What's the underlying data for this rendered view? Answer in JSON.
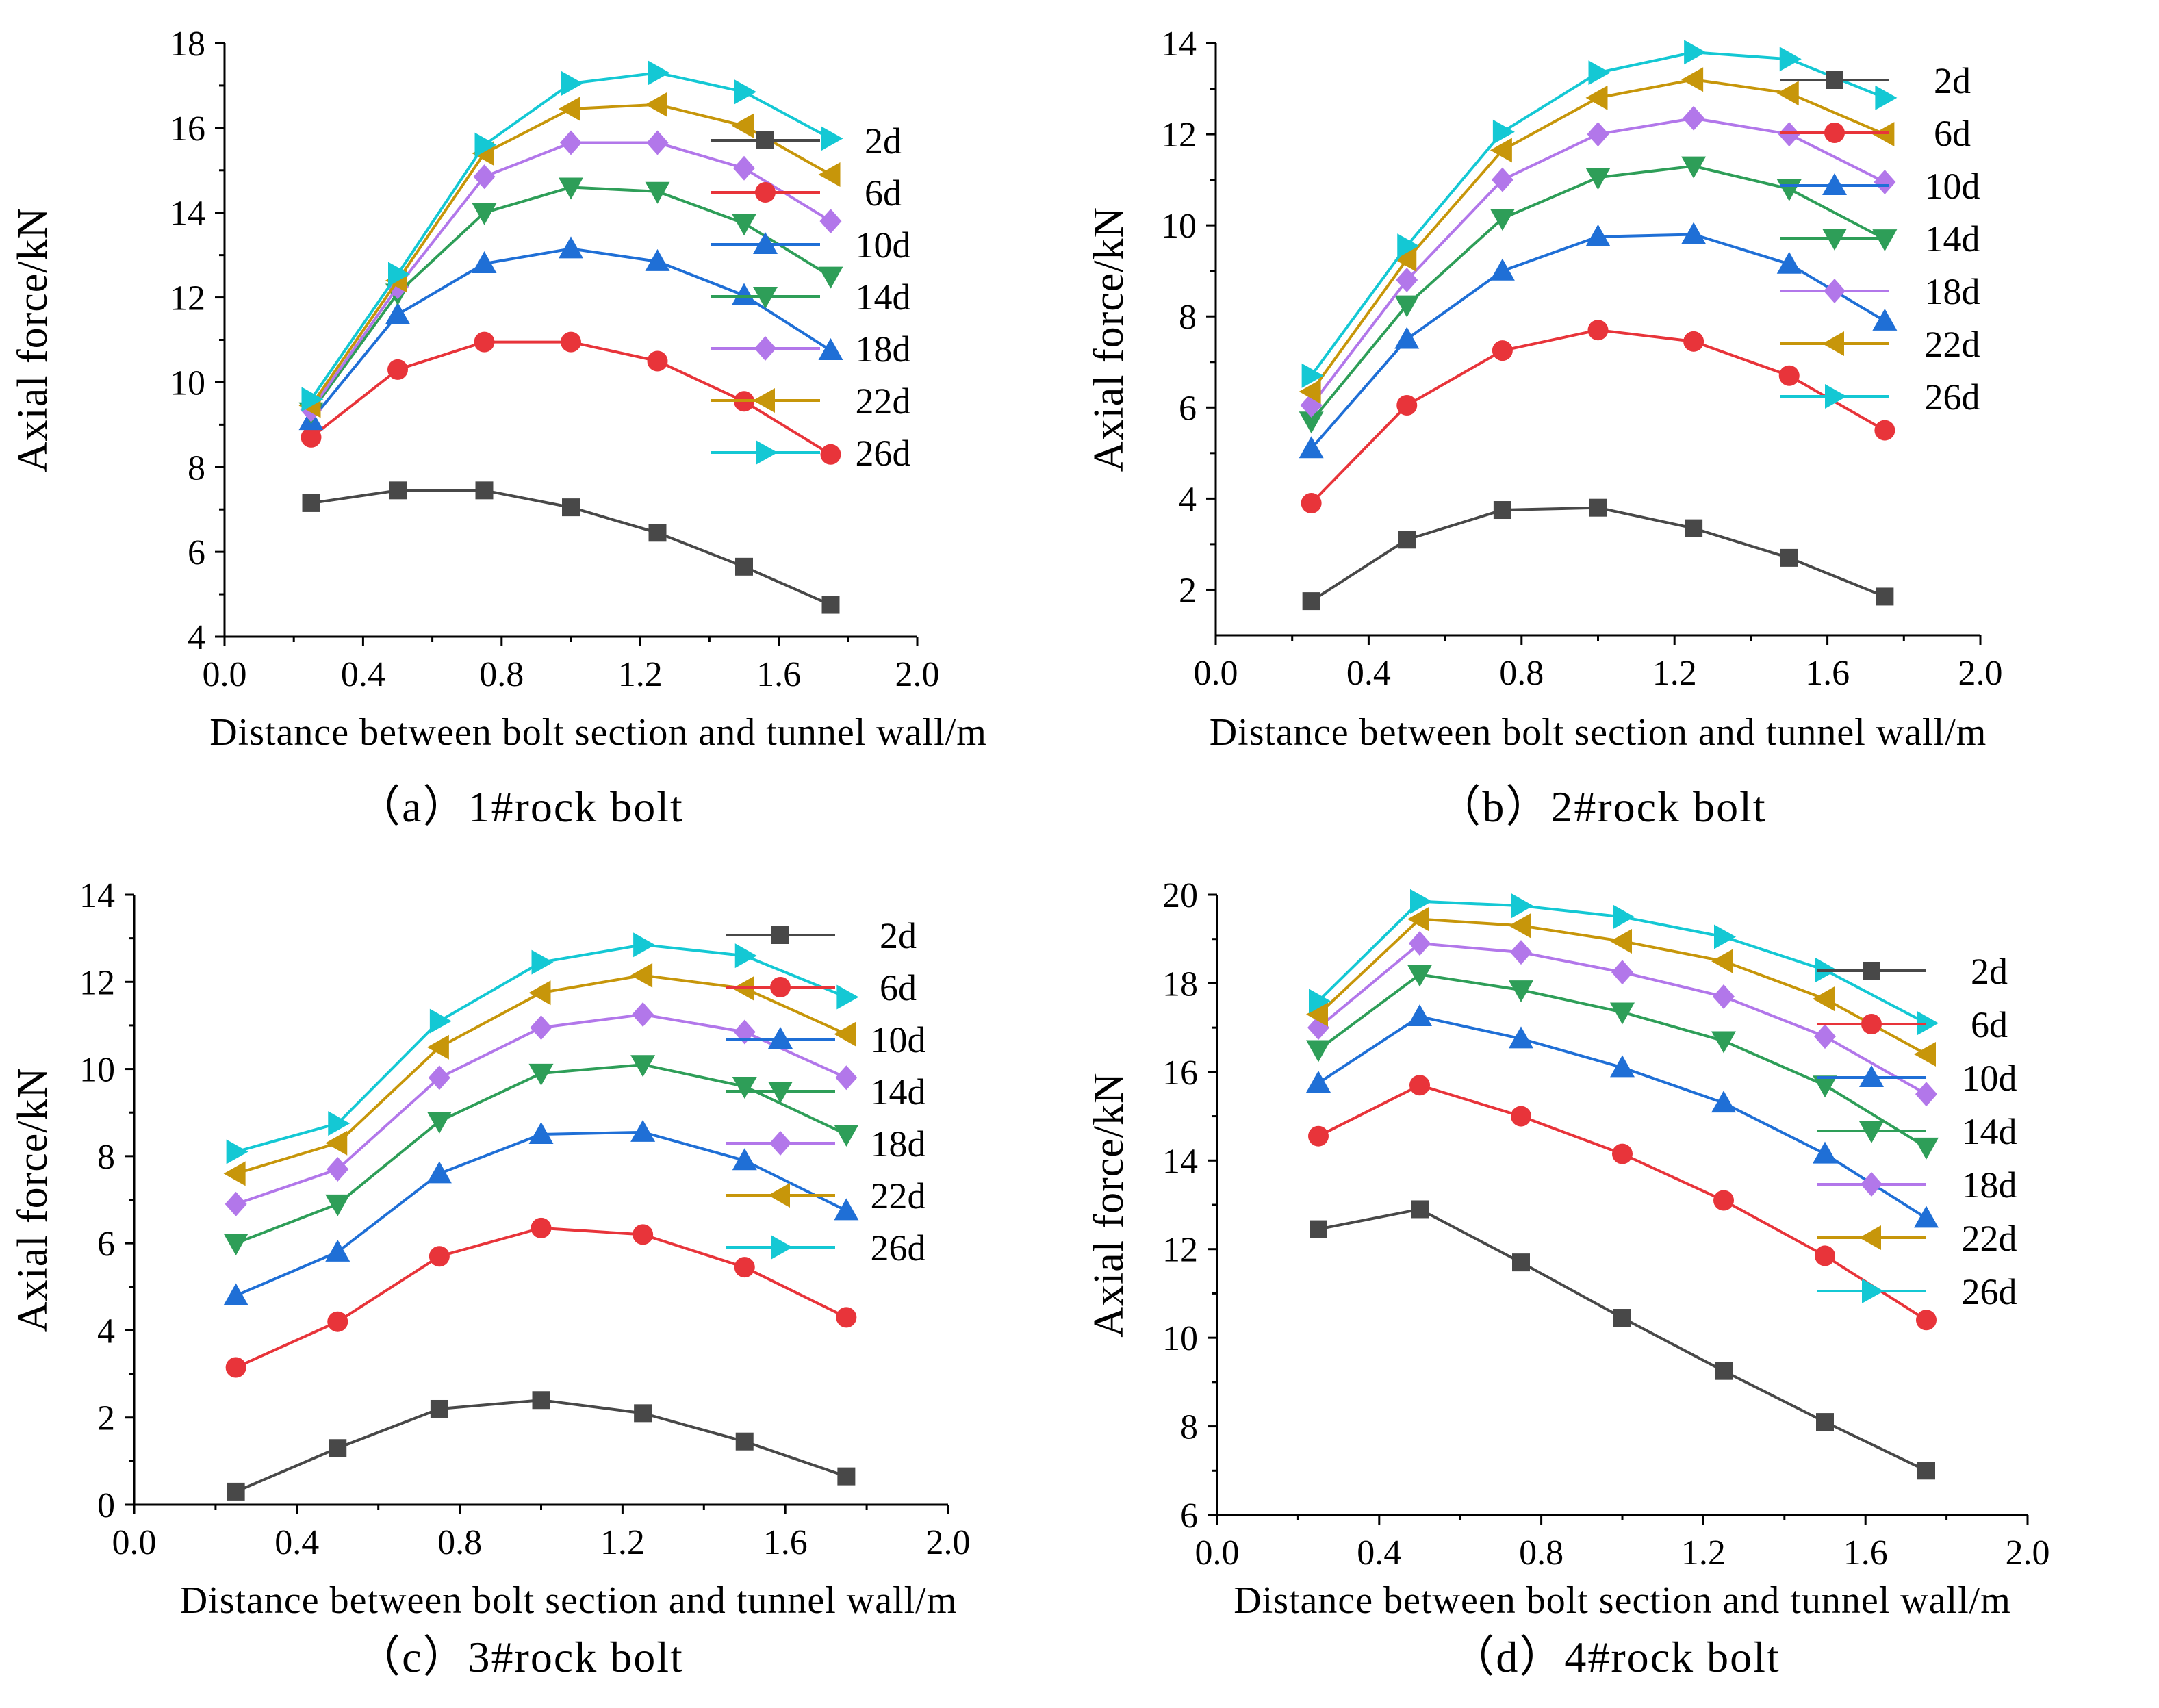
{
  "chart_data": [
    {
      "type": "line",
      "caption": "（a）1#rock bolt",
      "xlabel": "Distance between bolt section and tunnel wall/m",
      "ylabel": "Axial  force/kN",
      "xlim": [
        0.0,
        2.0
      ],
      "ylim": [
        4,
        18
      ],
      "xticks": [
        "0.0",
        "0.4",
        "0.8",
        "1.2",
        "1.6",
        "2.0"
      ],
      "yticks": [
        "4",
        "6",
        "8",
        "10",
        "12",
        "14",
        "16",
        "18"
      ],
      "x": [
        0.25,
        0.5,
        0.75,
        1.0,
        1.25,
        1.5,
        1.75
      ],
      "series": [
        {
          "name": "2d",
          "values": [
            7.15,
            7.45,
            7.45,
            7.05,
            6.45,
            5.65,
            4.75
          ]
        },
        {
          "name": "6d",
          "values": [
            8.7,
            10.3,
            10.95,
            10.95,
            10.5,
            9.55,
            8.3
          ]
        },
        {
          "name": "10d",
          "values": [
            9.1,
            11.6,
            12.8,
            13.15,
            12.85,
            12.05,
            10.75
          ]
        },
        {
          "name": "14d",
          "values": [
            9.3,
            12.1,
            14.0,
            14.6,
            14.5,
            13.75,
            12.5
          ]
        },
        {
          "name": "18d",
          "values": [
            9.35,
            12.25,
            14.85,
            15.65,
            15.65,
            15.05,
            13.8
          ]
        },
        {
          "name": "22d",
          "values": [
            9.45,
            12.4,
            15.4,
            16.45,
            16.55,
            16.05,
            14.9
          ]
        },
        {
          "name": "26d",
          "values": [
            9.6,
            12.55,
            15.6,
            17.05,
            17.3,
            16.85,
            15.75
          ]
        }
      ]
    },
    {
      "type": "line",
      "caption": "（b）2#rock bolt",
      "xlabel": "Distance between bolt section and tunnel wall/m",
      "ylabel": "Axial  force/kN",
      "xlim": [
        0.0,
        2.0
      ],
      "ylim": [
        1,
        14
      ],
      "xticks": [
        "0.0",
        "0.4",
        "0.8",
        "1.2",
        "1.6",
        "2.0"
      ],
      "yticks": [
        "2",
        "4",
        "6",
        "8",
        "10",
        "12",
        "14"
      ],
      "x": [
        0.25,
        0.5,
        0.75,
        1.0,
        1.25,
        1.5,
        1.75
      ],
      "series": [
        {
          "name": "2d",
          "values": [
            1.75,
            3.1,
            3.75,
            3.8,
            3.35,
            2.7,
            1.85
          ]
        },
        {
          "name": "6d",
          "values": [
            3.9,
            6.05,
            7.25,
            7.7,
            7.45,
            6.7,
            5.5
          ]
        },
        {
          "name": "10d",
          "values": [
            5.1,
            7.5,
            9.0,
            9.75,
            9.8,
            9.15,
            7.9
          ]
        },
        {
          "name": "14d",
          "values": [
            5.7,
            8.25,
            10.15,
            11.05,
            11.3,
            10.8,
            9.7
          ]
        },
        {
          "name": "18d",
          "values": [
            6.05,
            8.8,
            11.0,
            12.0,
            12.35,
            12.0,
            10.95
          ]
        },
        {
          "name": "22d",
          "values": [
            6.35,
            9.25,
            11.65,
            12.8,
            13.2,
            12.9,
            12.0
          ]
        },
        {
          "name": "26d",
          "values": [
            6.7,
            9.55,
            12.05,
            13.35,
            13.8,
            13.65,
            12.8
          ]
        }
      ]
    },
    {
      "type": "line",
      "caption": "（c）3#rock bolt",
      "xlabel": "Distance between bolt section and tunnel wall/m",
      "ylabel": "Axial  force/kN",
      "xlim": [
        0.0,
        2.0
      ],
      "ylim": [
        0,
        14
      ],
      "xticks": [
        "0.0",
        "0.4",
        "0.8",
        "1.2",
        "1.6",
        "2.0"
      ],
      "yticks": [
        "0",
        "2",
        "4",
        "6",
        "8",
        "10",
        "12",
        "14"
      ],
      "x": [
        0.25,
        0.5,
        0.75,
        1.0,
        1.25,
        1.5,
        1.75
      ],
      "series": [
        {
          "name": "2d",
          "values": [
            0.3,
            1.3,
            2.2,
            2.4,
            2.1,
            1.45,
            0.65
          ]
        },
        {
          "name": "6d",
          "values": [
            3.15,
            4.2,
            5.7,
            6.35,
            6.2,
            5.45,
            4.3
          ]
        },
        {
          "name": "10d",
          "values": [
            4.8,
            5.8,
            7.6,
            8.5,
            8.55,
            7.9,
            6.75
          ]
        },
        {
          "name": "14d",
          "values": [
            6.0,
            6.9,
            8.8,
            9.9,
            10.1,
            9.6,
            8.5
          ]
        },
        {
          "name": "18d",
          "values": [
            6.9,
            7.7,
            9.8,
            10.95,
            11.25,
            10.85,
            9.8
          ]
        },
        {
          "name": "22d",
          "values": [
            7.6,
            8.3,
            10.5,
            11.75,
            12.15,
            11.85,
            10.8
          ]
        },
        {
          "name": "26d",
          "values": [
            8.1,
            8.75,
            11.1,
            12.45,
            12.85,
            12.6,
            11.65
          ]
        }
      ]
    },
    {
      "type": "line",
      "caption": "（d）4#rock bolt",
      "xlabel": "Distance between bolt section and tunnel wall/m",
      "ylabel": "Axial  force/kN",
      "xlim": [
        0.0,
        2.0
      ],
      "ylim": [
        6,
        20
      ],
      "xticks": [
        "0.0",
        "0.4",
        "0.8",
        "1.2",
        "1.6",
        "2.0"
      ],
      "yticks": [
        "6",
        "8",
        "10",
        "12",
        "14",
        "16",
        "18",
        "20"
      ],
      "x": [
        0.25,
        0.5,
        0.75,
        1.0,
        1.25,
        1.5,
        1.75
      ],
      "series": [
        {
          "name": "2d",
          "values": [
            12.45,
            12.9,
            11.7,
            10.45,
            9.25,
            8.1,
            7.0
          ]
        },
        {
          "name": "6d",
          "values": [
            14.55,
            15.7,
            15.0,
            14.15,
            13.1,
            11.85,
            10.4
          ]
        },
        {
          "name": "10d",
          "values": [
            15.75,
            17.25,
            16.75,
            16.1,
            15.3,
            14.15,
            12.7
          ]
        },
        {
          "name": "14d",
          "values": [
            16.5,
            18.2,
            17.85,
            17.35,
            16.7,
            15.7,
            14.3
          ]
        },
        {
          "name": "18d",
          "values": [
            17.0,
            18.9,
            18.7,
            18.25,
            17.7,
            16.8,
            15.5
          ]
        },
        {
          "name": "22d",
          "values": [
            17.3,
            19.45,
            19.3,
            18.95,
            18.5,
            17.65,
            16.4
          ]
        },
        {
          "name": "26d",
          "values": [
            17.6,
            19.85,
            19.75,
            19.5,
            19.05,
            18.3,
            17.1
          ]
        }
      ]
    }
  ],
  "styles": {
    "series_colors": [
      "#484848",
      "#e8343a",
      "#1f6fd6",
      "#2e9e58",
      "#b277ea",
      "#c7960a",
      "#14c8d4"
    ],
    "series_markers": [
      "square",
      "circle",
      "triangle-up",
      "triangle-down",
      "diamond",
      "triangle-left",
      "triangle-right"
    ]
  }
}
